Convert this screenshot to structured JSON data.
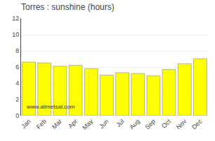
{
  "chart_data": {
    "type": "bar",
    "title": "Torres : sunshine (hours)",
    "categories": [
      "Jan",
      "Feb",
      "Mar",
      "Apr",
      "May",
      "Jun",
      "Jul",
      "Aug",
      "Sep",
      "Oct",
      "Nov",
      "Dec"
    ],
    "values": [
      6.6,
      6.5,
      6.1,
      6.2,
      5.8,
      5.0,
      5.3,
      5.2,
      4.9,
      5.7,
      6.4,
      7.0
    ],
    "color": "#ffff00",
    "ylim": [
      0,
      12
    ],
    "yticks": [
      0,
      2,
      4,
      6,
      8,
      10,
      12
    ],
    "grid": true,
    "annotations": [
      "www.allmetsat.com"
    ]
  }
}
